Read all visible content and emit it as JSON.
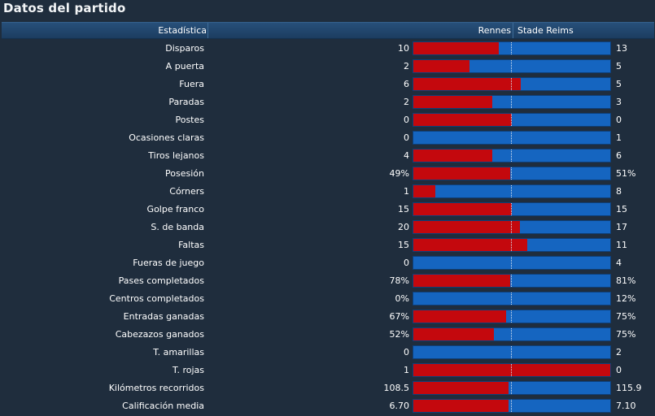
{
  "title": "Datos del partido",
  "header": {
    "stat": "Estadística",
    "home": "Rennes",
    "away": "Stade Reims"
  },
  "colors": {
    "home": "#c4080d",
    "away": "#1565c0",
    "background": "#1f2d3d"
  },
  "stats": [
    {
      "label": "Disparos",
      "home": "10",
      "away": "13",
      "home_share": 0.435
    },
    {
      "label": "A puerta",
      "home": "2",
      "away": "5",
      "home_share": 0.286
    },
    {
      "label": "Fuera",
      "home": "6",
      "away": "5",
      "home_share": 0.545
    },
    {
      "label": "Paradas",
      "home": "2",
      "away": "3",
      "home_share": 0.4
    },
    {
      "label": "Postes",
      "home": "0",
      "away": "0",
      "home_share": 0.5
    },
    {
      "label": "Ocasiones claras",
      "home": "0",
      "away": "1",
      "home_share": 0
    },
    {
      "label": "Tiros lejanos",
      "home": "4",
      "away": "6",
      "home_share": 0.4
    },
    {
      "label": "Posesión",
      "home": "49%",
      "away": "51%",
      "home_share": 0.49
    },
    {
      "label": "Córners",
      "home": "1",
      "away": "8",
      "home_share": 0.111
    },
    {
      "label": "Golpe franco",
      "home": "15",
      "away": "15",
      "home_share": 0.5
    },
    {
      "label": "S. de banda",
      "home": "20",
      "away": "17",
      "home_share": 0.541
    },
    {
      "label": "Faltas",
      "home": "15",
      "away": "11",
      "home_share": 0.577
    },
    {
      "label": "Fueras de juego",
      "home": "0",
      "away": "4",
      "home_share": 0
    },
    {
      "label": "Pases completados",
      "home": "78%",
      "away": "81%",
      "home_share": 0.491
    },
    {
      "label": "Centros completados",
      "home": "0%",
      "away": "12%",
      "home_share": 0
    },
    {
      "label": "Entradas ganadas",
      "home": "67%",
      "away": "75%",
      "home_share": 0.472
    },
    {
      "label": "Cabezazos ganados",
      "home": "52%",
      "away": "75%",
      "home_share": 0.409
    },
    {
      "label": "T. amarillas",
      "home": "0",
      "away": "2",
      "home_share": 0
    },
    {
      "label": "T. rojas",
      "home": "1",
      "away": "0",
      "home_share": 1
    },
    {
      "label": "Kilómetros recorridos",
      "home": "108.5",
      "away": "115.9",
      "home_share": 0.484
    },
    {
      "label": "Calificación media",
      "home": "6.70",
      "away": "7.10",
      "home_share": 0.485
    }
  ]
}
